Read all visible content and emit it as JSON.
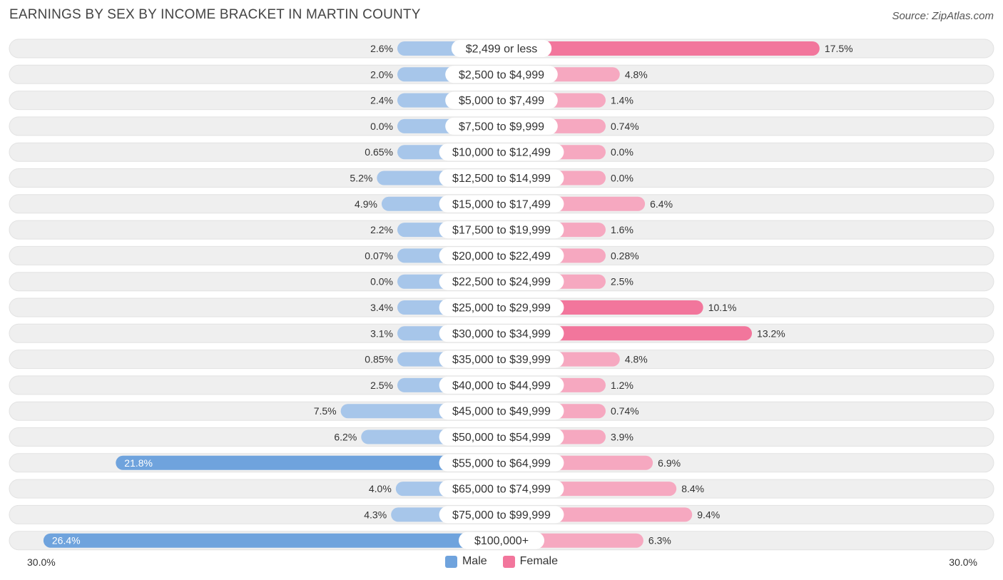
{
  "header": {
    "title": "EARNINGS BY SEX BY INCOME BRACKET IN MARTIN COUNTY",
    "source": "Source: ZipAtlas.com"
  },
  "colors": {
    "male_strong": "#6fa3dd",
    "male_light": "#a7c6ea",
    "female_strong": "#f2769c",
    "female_light": "#f6a8c0",
    "track": "#efefef"
  },
  "chart_data": {
    "type": "bar",
    "orientation": "horizontal-diverging",
    "title": "EARNINGS BY SEX BY INCOME BRACKET IN MARTIN COUNTY",
    "xlim": [
      -30,
      30
    ],
    "axis_labels": {
      "left": "30.0%",
      "right": "30.0%"
    },
    "legend": [
      {
        "name": "Male",
        "color": "#6fa3dd"
      },
      {
        "name": "Female",
        "color": "#f2769c"
      }
    ],
    "categories": [
      "$2,499 or less",
      "$2,500 to $4,999",
      "$5,000 to $7,499",
      "$7,500 to $9,999",
      "$10,000 to $12,499",
      "$12,500 to $14,999",
      "$15,000 to $17,499",
      "$17,500 to $19,999",
      "$20,000 to $22,499",
      "$22,500 to $24,999",
      "$25,000 to $29,999",
      "$30,000 to $34,999",
      "$35,000 to $39,999",
      "$40,000 to $44,999",
      "$45,000 to $49,999",
      "$50,000 to $54,999",
      "$55,000 to $64,999",
      "$65,000 to $74,999",
      "$75,000 to $99,999",
      "$100,000+"
    ],
    "series": [
      {
        "name": "Male",
        "values": [
          2.6,
          2.0,
          2.4,
          0.0,
          0.65,
          5.2,
          4.9,
          2.2,
          0.07,
          0.0,
          3.4,
          3.1,
          0.85,
          2.5,
          7.5,
          6.2,
          21.8,
          4.0,
          4.3,
          26.4
        ],
        "labels": [
          "2.6%",
          "2.0%",
          "2.4%",
          "0.0%",
          "0.65%",
          "5.2%",
          "4.9%",
          "2.2%",
          "0.07%",
          "0.0%",
          "3.4%",
          "3.1%",
          "0.85%",
          "2.5%",
          "7.5%",
          "6.2%",
          "21.8%",
          "4.0%",
          "4.3%",
          "26.4%"
        ]
      },
      {
        "name": "Female",
        "values": [
          17.5,
          4.8,
          1.4,
          0.74,
          0.0,
          0.0,
          6.4,
          1.6,
          0.28,
          2.5,
          10.1,
          13.2,
          4.8,
          1.2,
          0.74,
          3.9,
          6.9,
          8.4,
          9.4,
          6.3
        ],
        "labels": [
          "17.5%",
          "4.8%",
          "1.4%",
          "0.74%",
          "0.0%",
          "0.0%",
          "6.4%",
          "1.6%",
          "0.28%",
          "2.5%",
          "10.1%",
          "13.2%",
          "4.8%",
          "1.2%",
          "0.74%",
          "3.9%",
          "6.9%",
          "8.4%",
          "9.4%",
          "6.3%"
        ]
      }
    ]
  }
}
